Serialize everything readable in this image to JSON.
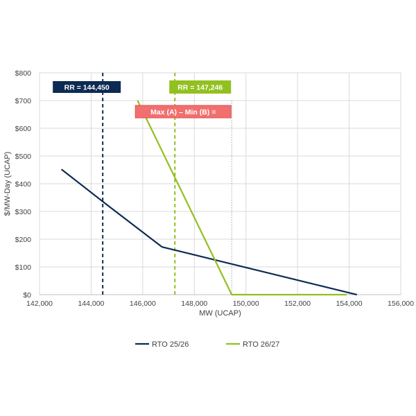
{
  "chart_data": {
    "type": "line",
    "xlabel": "MW (UCAP)",
    "ylabel": "$/MW-Day (UCAP)",
    "xlim": [
      142000,
      156000
    ],
    "ylim": [
      0,
      800
    ],
    "x_ticks": [
      "142,000",
      "144,000",
      "146,000",
      "148,000",
      "150,000",
      "152,000",
      "154,000",
      "156,000"
    ],
    "x_tick_values": [
      142000,
      144000,
      146000,
      148000,
      150000,
      152000,
      154000,
      156000
    ],
    "y_ticks": [
      "$0",
      "$100",
      "$200",
      "$300",
      "$400",
      "$500",
      "$600",
      "$700",
      "$800"
    ],
    "y_tick_values": [
      0,
      100,
      200,
      300,
      400,
      500,
      600,
      700,
      800
    ],
    "grid": true,
    "legend_position": "bottom",
    "series": [
      {
        "name": "RTO 25/26",
        "color": "#0d2b52",
        "x": [
          142850,
          144600,
          146750,
          154300
        ],
        "y": [
          452,
          325,
          172,
          0
        ]
      },
      {
        "name": "RTO 26/27",
        "color": "#92c01f",
        "x": [
          145800,
          149450,
          153900
        ],
        "y": [
          700,
          0,
          0
        ]
      }
    ],
    "reference_lines": [
      {
        "x": 144450,
        "color": "#0d2b52",
        "style": "dashed"
      },
      {
        "x": 147246,
        "color": "#92c01f",
        "style": "dashed"
      },
      {
        "x": 149450,
        "color": "#a0a0a0",
        "style": "dotted"
      }
    ],
    "annotations": [
      {
        "text": "RR = 144,450",
        "color": "#0d2b52"
      },
      {
        "text": "RR = 147,246",
        "color": "#92c01f"
      },
      {
        "text": "Max (A) – Min (B) =",
        "color": "#f16f6f"
      }
    ]
  }
}
